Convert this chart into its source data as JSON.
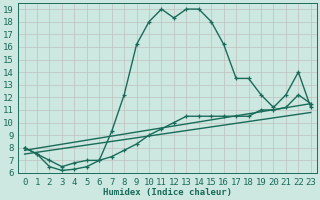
{
  "xlabel": "Humidex (Indice chaleur)",
  "bg_color": "#cce8e0",
  "grid_color": "#aad4cc",
  "line_color": "#1a6b5a",
  "xlim": [
    -0.5,
    23.5
  ],
  "ylim": [
    6,
    19.5
  ],
  "xticks": [
    0,
    1,
    2,
    3,
    4,
    5,
    6,
    7,
    8,
    9,
    10,
    11,
    12,
    13,
    14,
    15,
    16,
    17,
    18,
    19,
    20,
    21,
    22,
    23
  ],
  "yticks": [
    6,
    7,
    8,
    9,
    10,
    11,
    12,
    13,
    14,
    15,
    16,
    17,
    18,
    19
  ],
  "series1_x": [
    0,
    1,
    2,
    3,
    4,
    5,
    6,
    7,
    8,
    9,
    10,
    11,
    12,
    13,
    14,
    15,
    16,
    17,
    18,
    19,
    20,
    21,
    22,
    23
  ],
  "series1_y": [
    8,
    7.5,
    6.5,
    6.2,
    6.3,
    6.5,
    7.0,
    9.3,
    12.2,
    16.2,
    18.0,
    19.0,
    18.3,
    19.0,
    19.0,
    18.0,
    16.2,
    13.5,
    13.5,
    12.2,
    11.2,
    12.2,
    14.0,
    11.2
  ],
  "series2_x": [
    0,
    1,
    2,
    3,
    4,
    5,
    6,
    7,
    8,
    9,
    10,
    11,
    12,
    13,
    14,
    15,
    16,
    17,
    18,
    19,
    20,
    21,
    22,
    23
  ],
  "series2_y": [
    8,
    7.5,
    7.0,
    6.5,
    6.8,
    7.0,
    7.0,
    7.3,
    7.8,
    8.3,
    9.0,
    9.5,
    10.0,
    10.5,
    10.5,
    10.5,
    10.5,
    10.5,
    10.5,
    11.0,
    11.0,
    11.2,
    12.2,
    11.5
  ],
  "series3_x": [
    0,
    23
  ],
  "series3_y": [
    7.8,
    11.5
  ],
  "series4_x": [
    0,
    23
  ],
  "series4_y": [
    7.5,
    10.8
  ],
  "marker_size": 3.5,
  "line_width": 1.0,
  "font_size": 6.5
}
